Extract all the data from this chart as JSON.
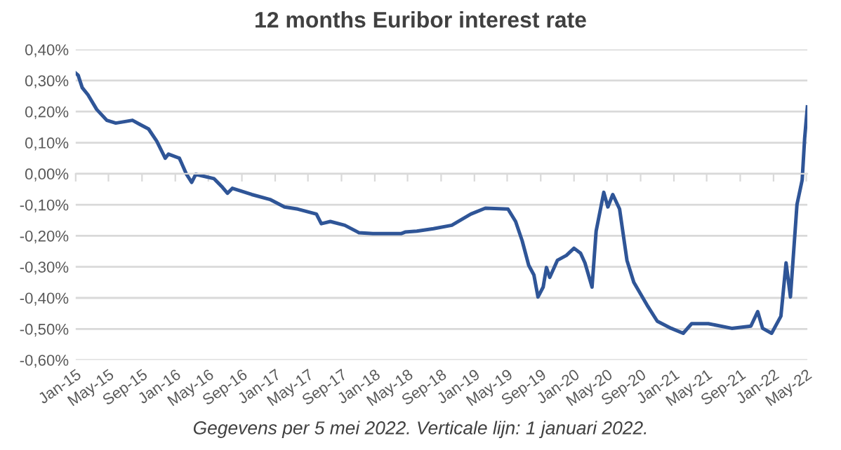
{
  "chart_data": {
    "type": "line",
    "title": "12 months Euribor interest rate",
    "annotations": [
      "Gegevens per 5 mei 2022. Verticale lijn: 1 januari 2022."
    ],
    "x": [
      "2015-01-01",
      "2015-01-10",
      "2015-01-25",
      "2015-02-15",
      "2015-03-19",
      "2015-04-25",
      "2015-05-28",
      "2015-07-28",
      "2015-08-22",
      "2015-09-25",
      "2015-10-25",
      "2015-11-25",
      "2015-12-07",
      "2016-01-16",
      "2016-02-10",
      "2016-03-01",
      "2016-03-16",
      "2016-05-22",
      "2016-06-22",
      "2016-07-10",
      "2016-07-28",
      "2016-10-07",
      "2016-12-13",
      "2017-02-04",
      "2017-03-25",
      "2017-06-01",
      "2017-06-19",
      "2017-07-22",
      "2017-09-13",
      "2017-11-04",
      "2017-12-25",
      "2018-04-07",
      "2018-04-22",
      "2018-06-04",
      "2018-08-04",
      "2018-10-10",
      "2018-12-19",
      "2019-02-10",
      "2019-05-04",
      "2019-06-01",
      "2019-06-25",
      "2019-07-19",
      "2019-08-07",
      "2019-08-22",
      "2019-09-10",
      "2019-09-22",
      "2019-10-04",
      "2019-11-01",
      "2019-12-04",
      "2020-01-01",
      "2020-01-25",
      "2020-02-10",
      "2020-03-07",
      "2020-03-22",
      "2020-04-19",
      "2020-05-04",
      "2020-05-22",
      "2020-06-16",
      "2020-07-13",
      "2020-08-07",
      "2020-09-28",
      "2020-11-01",
      "2020-12-22",
      "2021-02-04",
      "2021-03-07",
      "2021-05-07",
      "2021-08-01",
      "2021-10-10",
      "2021-11-04",
      "2021-11-22",
      "2021-12-25",
      "2022-01-28",
      "2022-02-16",
      "2022-03-04",
      "2022-03-28",
      "2022-04-16",
      "2022-04-25",
      "2022-05-05"
    ],
    "series": [
      {
        "color": "#2f5597",
        "values": [
          0.324,
          0.317,
          0.277,
          0.254,
          0.207,
          0.172,
          0.163,
          0.172,
          0.16,
          0.144,
          0.105,
          0.05,
          0.063,
          0.05,
          0.0,
          -0.028,
          -0.002,
          -0.016,
          -0.044,
          -0.063,
          -0.047,
          -0.067,
          -0.083,
          -0.107,
          -0.114,
          -0.13,
          -0.161,
          -0.154,
          -0.166,
          -0.19,
          -0.193,
          -0.193,
          -0.188,
          -0.185,
          -0.177,
          -0.166,
          -0.13,
          -0.111,
          -0.114,
          -0.154,
          -0.216,
          -0.295,
          -0.326,
          -0.397,
          -0.365,
          -0.302,
          -0.334,
          -0.279,
          -0.263,
          -0.24,
          -0.256,
          -0.287,
          -0.365,
          -0.185,
          -0.06,
          -0.107,
          -0.067,
          -0.114,
          -0.279,
          -0.35,
          -0.428,
          -0.475,
          -0.498,
          -0.514,
          -0.483,
          -0.483,
          -0.498,
          -0.491,
          -0.444,
          -0.498,
          -0.514,
          -0.459,
          -0.287,
          -0.397,
          -0.099,
          -0.02,
          0.113,
          0.215
        ]
      }
    ],
    "xlim": [
      "2015-01-01",
      "2022-05-05"
    ],
    "xticks": [
      {
        "value": "2015-01-01",
        "label": "Jan-15"
      },
      {
        "value": "2015-05-01",
        "label": "May-15"
      },
      {
        "value": "2015-09-01",
        "label": "Sep-15"
      },
      {
        "value": "2016-01-01",
        "label": "Jan-16"
      },
      {
        "value": "2016-05-01",
        "label": "May-16"
      },
      {
        "value": "2016-09-01",
        "label": "Sep-16"
      },
      {
        "value": "2017-01-01",
        "label": "Jan-17"
      },
      {
        "value": "2017-05-01",
        "label": "May-17"
      },
      {
        "value": "2017-09-01",
        "label": "Sep-17"
      },
      {
        "value": "2018-01-01",
        "label": "Jan-18"
      },
      {
        "value": "2018-05-01",
        "label": "May-18"
      },
      {
        "value": "2018-09-01",
        "label": "Sep-18"
      },
      {
        "value": "2019-01-01",
        "label": "Jan-19"
      },
      {
        "value": "2019-05-01",
        "label": "May-19"
      },
      {
        "value": "2019-09-01",
        "label": "Sep-19"
      },
      {
        "value": "2020-01-01",
        "label": "Jan-20"
      },
      {
        "value": "2020-05-01",
        "label": "May-20"
      },
      {
        "value": "2020-09-01",
        "label": "Sep-20"
      },
      {
        "value": "2021-01-01",
        "label": "Jan-21"
      },
      {
        "value": "2021-05-01",
        "label": "May-21"
      },
      {
        "value": "2021-09-01",
        "label": "Sep-21"
      },
      {
        "value": "2022-01-01",
        "label": "Jan-22"
      },
      {
        "value": "2022-05-01",
        "label": "May-22"
      }
    ],
    "ylim": [
      -0.6,
      0.4
    ],
    "yticks": [
      {
        "value": -0.6,
        "label": "-0,60%"
      },
      {
        "value": -0.5,
        "label": "-0,50%"
      },
      {
        "value": -0.4,
        "label": "-0,40%"
      },
      {
        "value": -0.3,
        "label": "-0,30%"
      },
      {
        "value": -0.2,
        "label": "-0,20%"
      },
      {
        "value": -0.1,
        "label": "-0,10%"
      },
      {
        "value": 0.0,
        "label": "0,00%"
      },
      {
        "value": 0.1,
        "label": "0,10%"
      },
      {
        "value": 0.2,
        "label": "0,20%"
      },
      {
        "value": 0.3,
        "label": "0,30%"
      },
      {
        "value": 0.4,
        "label": "0,40%"
      }
    ],
    "grid": "y"
  }
}
